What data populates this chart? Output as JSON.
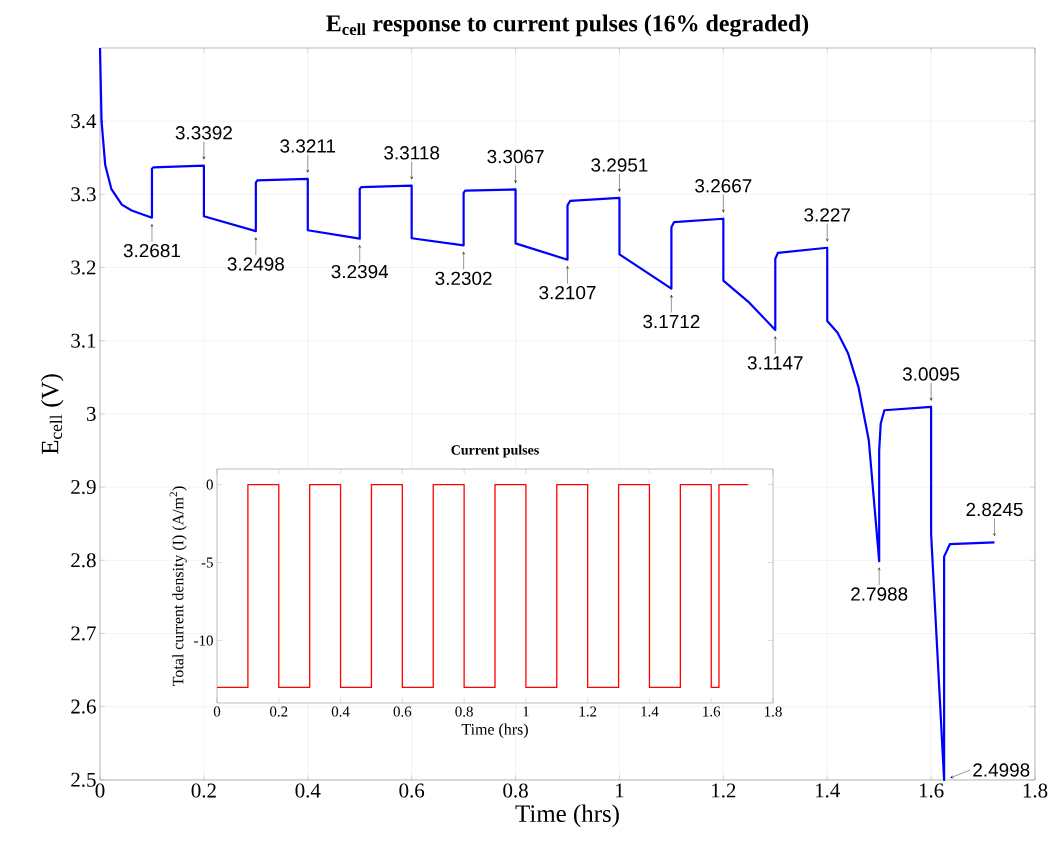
{
  "chart_data": [
    {
      "type": "line",
      "title": "E$_{cell}$ response to current pulses (16% degraded)",
      "xlabel": "Time (hrs)",
      "ylabel": "E$_{cell}$ (V)",
      "x": [
        0,
        0.003,
        0.01,
        0.022,
        0.042,
        0.061,
        0.1,
        0.1,
        0.103,
        0.2,
        0.2,
        0.3,
        0.3,
        0.303,
        0.4,
        0.4,
        0.5,
        0.5,
        0.503,
        0.6,
        0.6,
        0.7,
        0.7,
        0.703,
        0.8,
        0.8,
        0.9,
        0.9,
        0.905,
        1.0,
        1.0,
        1.1,
        1.1,
        1.105,
        1.2,
        1.2,
        1.25,
        1.3,
        1.3,
        1.305,
        1.4,
        1.4,
        1.42,
        1.44,
        1.46,
        1.48,
        1.5,
        1.5,
        1.503,
        1.51,
        1.6,
        1.6,
        1.625,
        1.625,
        1.636,
        1.722
      ],
      "series": [
        {
          "color": "#0000ff",
          "values": [
            3.5,
            3.4,
            3.34,
            3.307,
            3.286,
            3.278,
            3.2681,
            3.335,
            3.337,
            3.3392,
            3.27,
            3.2498,
            3.316,
            3.319,
            3.3211,
            3.251,
            3.2394,
            3.307,
            3.31,
            3.3118,
            3.24,
            3.2302,
            3.302,
            3.305,
            3.3067,
            3.233,
            3.2107,
            3.285,
            3.291,
            3.2951,
            3.218,
            3.1712,
            3.255,
            3.262,
            3.2667,
            3.182,
            3.152,
            3.1147,
            3.212,
            3.22,
            3.227,
            3.127,
            3.111,
            3.083,
            3.037,
            2.964,
            2.7988,
            2.95,
            2.987,
            3.005,
            3.0095,
            2.836,
            2.4998,
            2.805,
            2.822,
            2.8245
          ]
        }
      ],
      "xlim": [
        0,
        1.8
      ],
      "ylim": [
        2.4998,
        3.5
      ],
      "xticks": [
        0,
        0.2,
        0.4,
        0.6,
        0.8,
        1,
        1.2,
        1.4,
        1.6,
        1.8
      ],
      "yticks": [
        2.5,
        2.6,
        2.7,
        2.8,
        2.9,
        3,
        3.1,
        3.2,
        3.3,
        3.4
      ],
      "grid": true,
      "annotations": [
        {
          "text": "3.2681",
          "x": 0.1,
          "y": 3.2681
        },
        {
          "text": "3.3392",
          "x": 0.2,
          "y": 3.3392
        },
        {
          "text": "3.2498",
          "x": 0.3,
          "y": 3.2498
        },
        {
          "text": "3.3211",
          "x": 0.4,
          "y": 3.3211
        },
        {
          "text": "3.2394",
          "x": 0.5,
          "y": 3.2394
        },
        {
          "text": "3.3118",
          "x": 0.6,
          "y": 3.3118
        },
        {
          "text": "3.2302",
          "x": 0.7,
          "y": 3.2302
        },
        {
          "text": "3.3067",
          "x": 0.8,
          "y": 3.3067
        },
        {
          "text": "3.2107",
          "x": 0.9,
          "y": 3.2107
        },
        {
          "text": "3.2951",
          "x": 1.0,
          "y": 3.2951
        },
        {
          "text": "3.1712",
          "x": 1.1,
          "y": 3.1712
        },
        {
          "text": "3.2667",
          "x": 1.2,
          "y": 3.2667
        },
        {
          "text": "3.1147",
          "x": 1.3,
          "y": 3.1147
        },
        {
          "text": "3.227",
          "x": 1.4,
          "y": 3.227
        },
        {
          "text": "2.7988",
          "x": 1.5,
          "y": 2.7988
        },
        {
          "text": "3.0095",
          "x": 1.6,
          "y": 3.0095
        },
        {
          "text": "2.4998",
          "x": 1.625,
          "y": 2.4998
        },
        {
          "text": "2.8245",
          "x": 1.722,
          "y": 2.8245
        }
      ]
    },
    {
      "type": "line",
      "title": "Current pulses",
      "xlabel": "Time (hrs)",
      "ylabel": "Total current density (I) (A/m$^{2}$)",
      "x": [
        0,
        0.1,
        0.1,
        0.2,
        0.2,
        0.3,
        0.3,
        0.4,
        0.4,
        0.5,
        0.5,
        0.6,
        0.6,
        0.7,
        0.7,
        0.8,
        0.8,
        0.9,
        0.9,
        1.0,
        1.0,
        1.1,
        1.1,
        1.2,
        1.2,
        1.3,
        1.3,
        1.4,
        1.4,
        1.5,
        1.5,
        1.6,
        1.6,
        1.625,
        1.625,
        1.72
      ],
      "series": [
        {
          "color": "#ff0000",
          "values": [
            -13,
            -13,
            0,
            0,
            -13,
            -13,
            0,
            0,
            -13,
            -13,
            0,
            0,
            -13,
            -13,
            0,
            0,
            -13,
            -13,
            0,
            0,
            -13,
            -13,
            0,
            0,
            -13,
            -13,
            0,
            0,
            -13,
            -13,
            0,
            0,
            -13,
            -13,
            0,
            0
          ]
        }
      ],
      "xlim": [
        0,
        1.8
      ],
      "ylim": [
        -14,
        1
      ],
      "xticks": [
        0,
        0.2,
        0.4,
        0.6,
        0.8,
        1,
        1.2,
        1.4,
        1.6,
        1.8
      ],
      "yticks": [
        -10,
        -5,
        0
      ]
    }
  ]
}
